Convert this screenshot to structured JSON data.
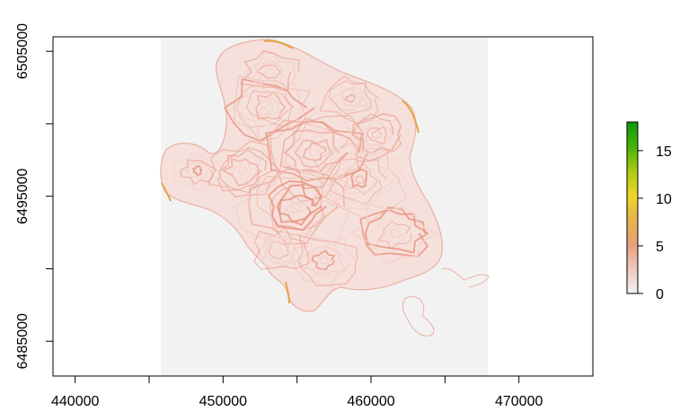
{
  "map": {
    "x_axis": {
      "ticks": [
        440000,
        450000,
        460000,
        470000
      ],
      "tick_labels": [
        "440000",
        "450000",
        "460000",
        "470000"
      ],
      "range": [
        438500,
        475000
      ]
    },
    "y_axis": {
      "ticks": [
        6485000,
        6495000,
        6505000
      ],
      "tick_labels": [
        "6485000",
        "6495000",
        "6505000"
      ],
      "range": [
        6482600,
        6506000
      ]
    },
    "raster_extent": {
      "xmin": 445800,
      "xmax": 467900,
      "ymin": 6482600,
      "ymax": 6506000
    },
    "raster_background_color": "#f2f2f2",
    "contour_colors": [
      "#f3d2cc",
      "#eeb0a3",
      "#e8927e",
      "#e3a44a"
    ],
    "legend": {
      "range": [
        0,
        18
      ],
      "ticks": [
        0,
        5,
        10,
        15
      ],
      "tick_labels": [
        "0",
        "5",
        "10",
        "15"
      ],
      "colors": [
        "#f2f2f2",
        "#eec9c0",
        "#e8a07a",
        "#e6b44c",
        "#ecd62a",
        "#a9cd13",
        "#47b30a",
        "#0a9a05"
      ]
    }
  }
}
